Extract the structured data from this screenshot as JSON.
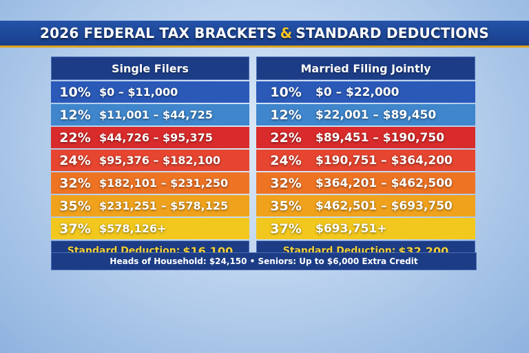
{
  "title": {
    "part1": "2026 FEDERAL TAX BRACKETS",
    "amp": "&",
    "part2": "STANDARD DEDUCTIONS"
  },
  "colors": {
    "title_bar": "#1f4a9c",
    "accent_gold": "#e0a21c",
    "header_navy": "#1c3d86",
    "deduction_text": "#f6d23a"
  },
  "panels": [
    {
      "header": "Single Filers",
      "brackets": [
        {
          "rate": "10%",
          "range": "$0 – $11,000",
          "color": "#2a59b8"
        },
        {
          "rate": "12%",
          "range": "$11,001 – $44,725",
          "color": "#3f86cc"
        },
        {
          "rate": "22%",
          "range": "$44,726 – $95,375",
          "color": "#d92b2b"
        },
        {
          "rate": "24%",
          "range": "$95,376 – $182,100",
          "color": "#e64530"
        },
        {
          "rate": "32%",
          "range": "$182,101 – $231,250",
          "color": "#ee7424"
        },
        {
          "rate": "35%",
          "range": "$231,251 – $578,125",
          "color": "#f0a21c"
        },
        {
          "rate": "37%",
          "range": "$578,126+",
          "color": "#f2c81e"
        }
      ],
      "deduction_label": "Standard Deduction:",
      "deduction_amount": "$16,100"
    },
    {
      "header": "Married Filing Jointly",
      "brackets": [
        {
          "rate": "10%",
          "range": "$0 – $22,000",
          "color": "#2a59b8"
        },
        {
          "rate": "12%",
          "range": "$22,001 – $89,450",
          "color": "#3f86cc"
        },
        {
          "rate": "22%",
          "range": "$89,451 – $190,750",
          "color": "#d92b2b"
        },
        {
          "rate": "24%",
          "range": "$190,751 – $364,200",
          "color": "#e64530"
        },
        {
          "rate": "32%",
          "range": "$364,201 – $462,500",
          "color": "#ee7424"
        },
        {
          "rate": "35%",
          "range": "$462,501 – $693,750",
          "color": "#f0a21c"
        },
        {
          "rate": "37%",
          "range": "$693,751+",
          "color": "#f2c81e"
        }
      ],
      "deduction_label": "Standard Deduction:",
      "deduction_amount": "$32,200"
    }
  ],
  "footer": "Heads of Household: $24,150 • Seniors: Up to $6,000 Extra Credit"
}
